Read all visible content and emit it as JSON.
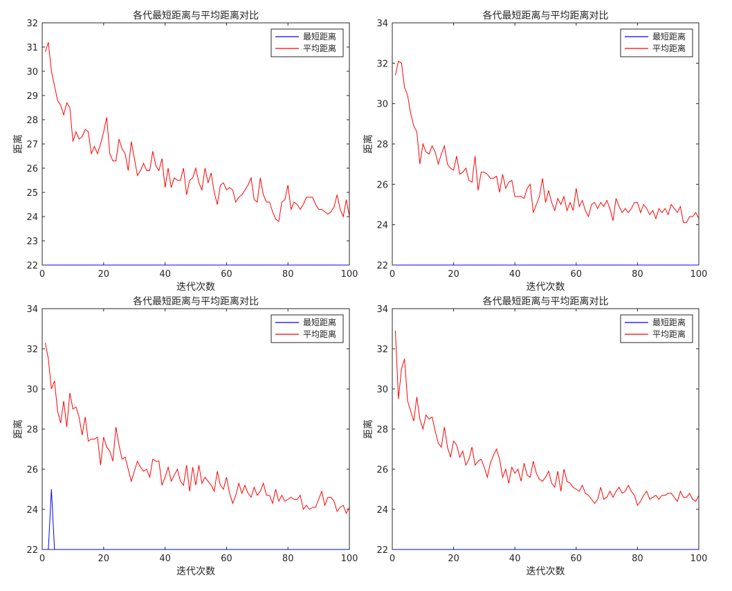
{
  "colors": {
    "best": "#0000ff",
    "avg": "#ff0000",
    "axis": "#262626",
    "background": "#ffffff"
  },
  "chart_data": [
    {
      "type": "line",
      "title": "各代最短距离与平均距离对比",
      "xlabel": "迭代次数",
      "ylabel": "距离",
      "xlim": [
        0,
        100
      ],
      "ylim": [
        22,
        32
      ],
      "xticks": [
        0,
        20,
        40,
        60,
        80,
        100
      ],
      "yticks": [
        22,
        23,
        24,
        25,
        26,
        27,
        28,
        29,
        30,
        31,
        32
      ],
      "grid": false,
      "legend_position": "top-right",
      "series": [
        {
          "name": "最短距离",
          "color": "#0000ff",
          "x": [
            1,
            100
          ],
          "y": [
            22,
            22
          ]
        },
        {
          "name": "平均距离",
          "color": "#ff0000",
          "x": [
            1,
            2,
            3,
            4,
            5,
            6,
            7,
            8,
            9,
            10,
            11,
            12,
            13,
            14,
            15,
            16,
            17,
            18,
            19,
            20,
            21,
            22,
            23,
            24,
            25,
            26,
            27,
            28,
            29,
            30,
            31,
            32,
            33,
            34,
            35,
            36,
            37,
            38,
            39,
            40,
            41,
            42,
            43,
            44,
            45,
            46,
            47,
            48,
            49,
            50,
            51,
            52,
            53,
            54,
            55,
            56,
            57,
            58,
            59,
            60,
            61,
            62,
            63,
            64,
            65,
            66,
            67,
            68,
            69,
            70,
            71,
            72,
            73,
            74,
            75,
            76,
            77,
            78,
            79,
            80,
            81,
            82,
            83,
            84,
            85,
            86,
            87,
            88,
            89,
            90,
            91,
            92,
            93,
            94,
            95,
            96,
            97,
            98,
            99,
            100
          ],
          "y": [
            30.8,
            31.2,
            30.0,
            29.4,
            28.8,
            28.6,
            28.2,
            28.7,
            28.5,
            27.1,
            27.5,
            27.2,
            27.3,
            27.6,
            27.5,
            26.6,
            26.9,
            26.6,
            27.0,
            27.5,
            28.1,
            26.6,
            26.3,
            26.3,
            27.2,
            26.8,
            26.6,
            25.9,
            27.1,
            26.4,
            25.7,
            25.9,
            26.2,
            25.9,
            25.9,
            26.7,
            26.1,
            25.9,
            26.4,
            25.2,
            26.0,
            25.2,
            25.6,
            25.5,
            25.5,
            26.0,
            24.9,
            25.5,
            25.6,
            26.0,
            25.4,
            25.1,
            26.0,
            25.4,
            25.8,
            25.0,
            24.5,
            25.3,
            25.4,
            25.1,
            25.2,
            25.1,
            24.6,
            24.8,
            24.9,
            25.1,
            25.3,
            25.6,
            24.7,
            24.6,
            25.6,
            24.9,
            24.6,
            24.6,
            24.2,
            23.9,
            23.8,
            24.6,
            24.7,
            25.3,
            24.3,
            24.6,
            24.5,
            24.3,
            24.5,
            24.8,
            24.8,
            24.8,
            24.5,
            24.3,
            24.3,
            24.2,
            24.1,
            24.2,
            24.4,
            24.9,
            24.3,
            24.0,
            24.7,
            24.0
          ]
        }
      ]
    },
    {
      "type": "line",
      "title": "各代最短距离与平均距离对比",
      "xlabel": "迭代次数",
      "ylabel": "距离",
      "xlim": [
        0,
        100
      ],
      "ylim": [
        22,
        34
      ],
      "xticks": [
        0,
        20,
        40,
        60,
        80,
        100
      ],
      "yticks": [
        22,
        24,
        26,
        28,
        30,
        32,
        34
      ],
      "grid": false,
      "legend_position": "top-right",
      "series": [
        {
          "name": "最短距离",
          "color": "#0000ff",
          "x": [
            1,
            100
          ],
          "y": [
            22,
            22
          ]
        },
        {
          "name": "平均距离",
          "color": "#ff0000",
          "x": [
            1,
            2,
            3,
            4,
            5,
            6,
            7,
            8,
            9,
            10,
            11,
            12,
            13,
            14,
            15,
            16,
            17,
            18,
            19,
            20,
            21,
            22,
            23,
            24,
            25,
            26,
            27,
            28,
            29,
            30,
            31,
            32,
            33,
            34,
            35,
            36,
            37,
            38,
            39,
            40,
            41,
            42,
            43,
            44,
            45,
            46,
            47,
            48,
            49,
            50,
            51,
            52,
            53,
            54,
            55,
            56,
            57,
            58,
            59,
            60,
            61,
            62,
            63,
            64,
            65,
            66,
            67,
            68,
            69,
            70,
            71,
            72,
            73,
            74,
            75,
            76,
            77,
            78,
            79,
            80,
            81,
            82,
            83,
            84,
            85,
            86,
            87,
            88,
            89,
            90,
            91,
            92,
            93,
            94,
            95,
            96,
            97,
            98,
            99,
            100
          ],
          "y": [
            31.4,
            32.1,
            32.0,
            30.8,
            30.4,
            29.5,
            28.9,
            28.6,
            27.0,
            28.0,
            27.6,
            27.5,
            27.9,
            27.6,
            27.0,
            27.5,
            27.9,
            27.0,
            26.8,
            26.7,
            27.4,
            26.5,
            26.6,
            26.8,
            26.2,
            26.1,
            27.4,
            25.7,
            26.6,
            26.6,
            26.5,
            26.3,
            26.3,
            26.4,
            25.6,
            26.5,
            25.8,
            26.1,
            26.2,
            25.4,
            25.4,
            25.4,
            25.3,
            25.8,
            26.0,
            24.6,
            25.0,
            25.4,
            26.3,
            25.1,
            25.7,
            25.1,
            24.7,
            25.3,
            25.0,
            25.4,
            24.7,
            25.1,
            24.7,
            25.8,
            24.9,
            25.2,
            24.7,
            24.4,
            25.0,
            25.1,
            24.8,
            25.1,
            24.9,
            25.2,
            24.8,
            24.2,
            25.3,
            24.9,
            24.6,
            24.8,
            24.6,
            24.8,
            25.1,
            25.1,
            24.6,
            25.0,
            24.8,
            24.5,
            24.7,
            24.3,
            24.8,
            24.6,
            24.8,
            24.5,
            25.0,
            24.8,
            24.6,
            24.9,
            24.1,
            24.1,
            24.4,
            24.4,
            24.6,
            24.3
          ]
        }
      ]
    },
    {
      "type": "line",
      "title": "各代最短距离与平均距离对比",
      "xlabel": "迭代次数",
      "ylabel": "距离",
      "xlim": [
        0,
        100
      ],
      "ylim": [
        22,
        34
      ],
      "xticks": [
        0,
        20,
        40,
        60,
        80,
        100
      ],
      "yticks": [
        22,
        24,
        26,
        28,
        30,
        32,
        34
      ],
      "grid": false,
      "legend_position": "top-right",
      "series": [
        {
          "name": "最短距离",
          "color": "#0000ff",
          "x": [
            1,
            2,
            3,
            4,
            100
          ],
          "y": [
            22,
            22,
            25,
            22,
            22
          ]
        },
        {
          "name": "平均距离",
          "color": "#ff0000",
          "x": [
            1,
            2,
            3,
            4,
            5,
            6,
            7,
            8,
            9,
            10,
            11,
            12,
            13,
            14,
            15,
            16,
            17,
            18,
            19,
            20,
            21,
            22,
            23,
            24,
            25,
            26,
            27,
            28,
            29,
            30,
            31,
            32,
            33,
            34,
            35,
            36,
            37,
            38,
            39,
            40,
            41,
            42,
            43,
            44,
            45,
            46,
            47,
            48,
            49,
            50,
            51,
            52,
            53,
            54,
            55,
            56,
            57,
            58,
            59,
            60,
            61,
            62,
            63,
            64,
            65,
            66,
            67,
            68,
            69,
            70,
            71,
            72,
            73,
            74,
            75,
            76,
            77,
            78,
            79,
            80,
            81,
            82,
            83,
            84,
            85,
            86,
            87,
            88,
            89,
            90,
            91,
            92,
            93,
            94,
            95,
            96,
            97,
            98,
            99,
            100
          ],
          "y": [
            32.3,
            31.5,
            30.0,
            30.4,
            28.9,
            28.3,
            29.4,
            28.1,
            29.8,
            29.0,
            29.1,
            28.6,
            27.7,
            28.6,
            27.4,
            27.5,
            27.5,
            27.6,
            26.2,
            27.6,
            27.1,
            26.9,
            26.4,
            28.1,
            27.2,
            26.5,
            26.6,
            26.0,
            25.4,
            25.9,
            26.4,
            26.1,
            25.9,
            26.0,
            25.6,
            26.5,
            26.4,
            26.4,
            25.2,
            25.6,
            26.1,
            25.4,
            25.7,
            26.0,
            25.4,
            25.2,
            26.2,
            24.9,
            26.1,
            25.2,
            26.2,
            25.3,
            25.6,
            25.4,
            25.2,
            24.9,
            25.9,
            25.2,
            25.0,
            25.6,
            24.8,
            24.3,
            24.7,
            25.3,
            24.8,
            25.2,
            24.8,
            24.6,
            25.1,
            24.7,
            24.9,
            25.3,
            24.7,
            24.7,
            24.3,
            25.0,
            24.4,
            24.7,
            24.4,
            24.5,
            24.6,
            24.5,
            24.5,
            24.7,
            24.0,
            24.2,
            24.0,
            24.1,
            24.1,
            24.5,
            24.9,
            24.2,
            24.6,
            24.6,
            24.4,
            23.9,
            24.1,
            24.2,
            23.8,
            24.1
          ]
        }
      ]
    },
    {
      "type": "line",
      "title": "各代最短距离与平均距离对比",
      "xlabel": "迭代次数",
      "ylabel": "距离",
      "xlim": [
        0,
        100
      ],
      "ylim": [
        22,
        34
      ],
      "xticks": [
        0,
        20,
        40,
        60,
        80,
        100
      ],
      "yticks": [
        22,
        24,
        26,
        28,
        30,
        32,
        34
      ],
      "grid": false,
      "legend_position": "top-right",
      "series": [
        {
          "name": "最短距离",
          "color": "#0000ff",
          "x": [
            1,
            100
          ],
          "y": [
            22,
            22
          ]
        },
        {
          "name": "平均距离",
          "color": "#ff0000",
          "x": [
            1,
            2,
            3,
            4,
            5,
            6,
            7,
            8,
            9,
            10,
            11,
            12,
            13,
            14,
            15,
            16,
            17,
            18,
            19,
            20,
            21,
            22,
            23,
            24,
            25,
            26,
            27,
            28,
            29,
            30,
            31,
            32,
            33,
            34,
            35,
            36,
            37,
            38,
            39,
            40,
            41,
            42,
            43,
            44,
            45,
            46,
            47,
            48,
            49,
            50,
            51,
            52,
            53,
            54,
            55,
            56,
            57,
            58,
            59,
            60,
            61,
            62,
            63,
            64,
            65,
            66,
            67,
            68,
            69,
            70,
            71,
            72,
            73,
            74,
            75,
            76,
            77,
            78,
            79,
            80,
            81,
            82,
            83,
            84,
            85,
            86,
            87,
            88,
            89,
            90,
            91,
            92,
            93,
            94,
            95,
            96,
            97,
            98,
            99,
            100
          ],
          "y": [
            32.9,
            29.5,
            31.0,
            31.5,
            29.4,
            28.9,
            28.4,
            29.6,
            28.5,
            28.0,
            28.7,
            28.5,
            28.6,
            27.9,
            27.3,
            27.1,
            28.1,
            27.1,
            26.6,
            27.4,
            27.2,
            26.6,
            26.9,
            26.2,
            26.5,
            27.1,
            26.2,
            26.4,
            26.5,
            26.1,
            25.6,
            26.3,
            26.7,
            27.0,
            26.5,
            25.6,
            26.0,
            25.3,
            26.1,
            25.8,
            26.0,
            25.4,
            26.3,
            25.7,
            25.6,
            26.4,
            25.8,
            25.5,
            25.4,
            25.6,
            25.9,
            25.3,
            25.1,
            25.9,
            24.9,
            26.0,
            25.4,
            25.3,
            25.1,
            25.0,
            24.9,
            25.2,
            24.8,
            24.7,
            24.5,
            24.3,
            24.5,
            25.1,
            24.5,
            24.6,
            24.9,
            24.6,
            24.9,
            25.1,
            24.8,
            24.9,
            25.2,
            24.9,
            24.7,
            24.2,
            24.4,
            24.7,
            24.9,
            24.5,
            24.6,
            24.7,
            24.5,
            24.7,
            24.7,
            24.8,
            24.8,
            24.6,
            24.4,
            24.9,
            24.6,
            24.6,
            24.8,
            24.5,
            24.4,
            24.7
          ]
        }
      ]
    }
  ]
}
